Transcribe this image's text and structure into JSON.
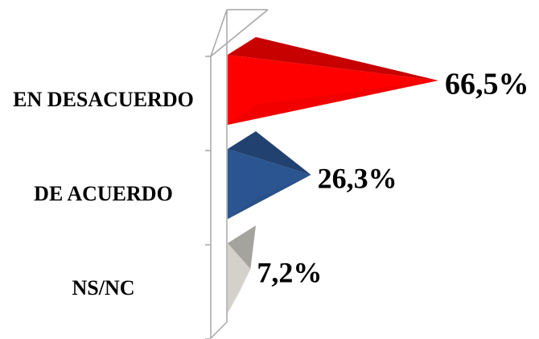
{
  "chart_data": {
    "type": "pyramid_bar",
    "categories": [
      "EN DESACUERDO",
      "DE ACUERDO",
      "NS/NC"
    ],
    "values": [
      66.5,
      26.3,
      7.2
    ],
    "value_labels": [
      "66,5%",
      "26,3%",
      "7,2%"
    ],
    "colors": [
      "#ff0000",
      "#2a5590",
      "#d4d1cb"
    ]
  }
}
